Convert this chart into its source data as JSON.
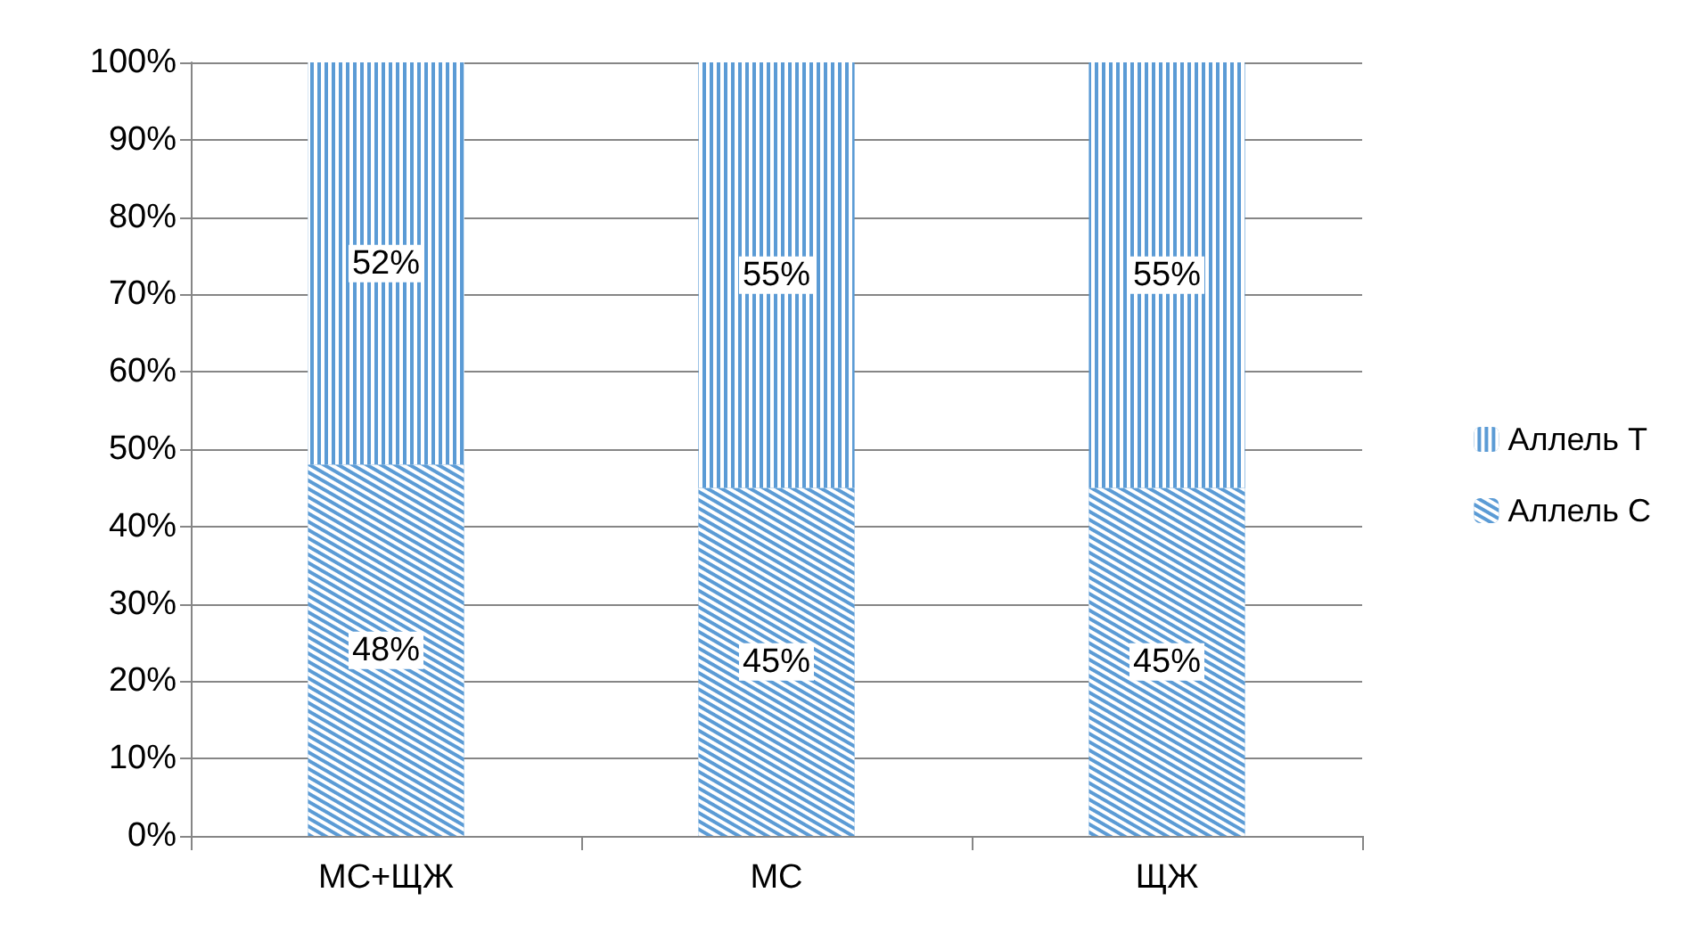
{
  "chart_data": {
    "type": "bar",
    "stacked": true,
    "categories": [
      "МС+ЩЖ",
      "МС",
      "ЩЖ"
    ],
    "series": [
      {
        "name": "Аллель C",
        "color": "#5b9bd5",
        "values": [
          48,
          45,
          45
        ],
        "value_labels": [
          "48%",
          "45%",
          "45%"
        ]
      },
      {
        "name": "Аллель T",
        "color": "#5b9bd5",
        "values": [
          52,
          55,
          55
        ],
        "value_labels": [
          "52%",
          "55%",
          "55%"
        ]
      }
    ],
    "ylim": [
      0,
      100
    ],
    "yticks": [
      {
        "value": 0,
        "label": "0%"
      },
      {
        "value": 10,
        "label": "10%"
      },
      {
        "value": 20,
        "label": "20%"
      },
      {
        "value": 30,
        "label": "30%"
      },
      {
        "value": 40,
        "label": "40%"
      },
      {
        "value": 50,
        "label": "50%"
      },
      {
        "value": 60,
        "label": "60%"
      },
      {
        "value": 70,
        "label": "70%"
      },
      {
        "value": 80,
        "label": "80%"
      },
      {
        "value": 90,
        "label": "90%"
      },
      {
        "value": 100,
        "label": "100%"
      }
    ],
    "grid": "y",
    "legend": "right"
  }
}
